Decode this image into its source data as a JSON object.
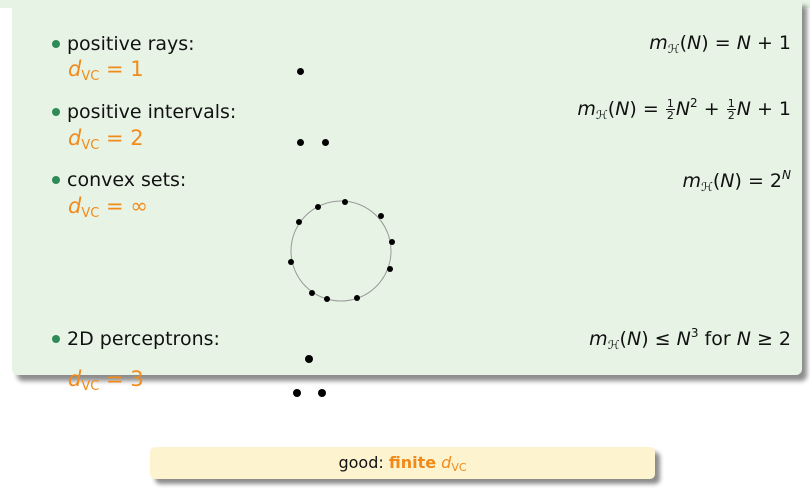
{
  "items": [
    {
      "label": "positive rays:",
      "dvc_value": "1",
      "formula_rhs": "N + 1"
    },
    {
      "label": "positive intervals:",
      "dvc_value": "2"
    },
    {
      "label": "convex sets:",
      "dvc_value": "∞",
      "formula_rhs": "2"
    },
    {
      "label": "2D perceptrons:",
      "dvc_value": "3",
      "formula_rhs": "N",
      "formula_cond": "for N ≥ 2"
    }
  ],
  "dvc_symbol": "d",
  "dvc_sub": "VC",
  "growth_symbol": "m",
  "growth_sub": "ℋ",
  "summary": {
    "prefix": "good:",
    "emph": "finite",
    "sym": "d",
    "sub": "VC"
  },
  "colors": {
    "box_bg": "#e7f4e5",
    "accent": "#f28a1a",
    "bullet": "#2e8b57",
    "summary_bg": "#fdf3cf"
  }
}
